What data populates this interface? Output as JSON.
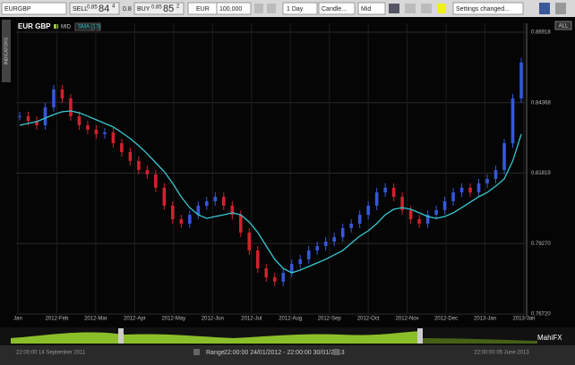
{
  "toolbar": {
    "symbol": "EURGBP",
    "sell_label": "SELL",
    "sell_small": "0.85",
    "sell_big": "84",
    "sell_sup": "4",
    "spread": "0.8",
    "buy_label": "BUY",
    "buy_small": "0.85",
    "buy_big": "85",
    "buy_sup": "2",
    "currency": "EUR",
    "amount": "100,000",
    "period": "1 Day",
    "chart_style": "Candle...",
    "price_type": "Mid",
    "settings": "Settings changed..."
  },
  "side_tab": "INDICATORS",
  "all_button": "ALL",
  "navigator": {
    "start": "22:00:00 14 September 2011",
    "range_label": "Range",
    "range": "22:00:00 24/01/2012 - 22:00:00 30/01/2013",
    "end": "22:00:00 05 June 2013",
    "brand": "MahiFX"
  },
  "chart_data": {
    "type": "candlestick",
    "title": "EUR GBP",
    "price_badge": "MID",
    "indicator": "SMA (10)",
    "x_labels": [
      "Jan",
      "2012-Feb",
      "2012-Mar",
      "2012-Apr",
      "2012-May",
      "2012-Jun",
      "2012-Jul",
      "2012-Aug",
      "2012-Sep",
      "2012-Oct",
      "2012-Nov",
      "2012-Dec",
      "2013-Jan",
      "2013-Jan"
    ],
    "ylim": [
      0.7672,
      0.86918
    ],
    "yticks": [
      {
        "value": 0.7672,
        "label": "0.76720"
      },
      {
        "value": 0.7927,
        "label": "0.79270"
      },
      0.81819,
      0.84368,
      0.86918
    ],
    "up_color": "#3558d8",
    "down_color": "#d3202e",
    "grid": true,
    "series": [
      {
        "name": "MID",
        "values": [
          0.8388,
          0.8371,
          0.8355,
          0.842,
          0.8485,
          0.8452,
          0.8388,
          0.8355,
          0.8339,
          0.8323,
          0.8329,
          0.829,
          0.8258,
          0.8226,
          0.8193,
          0.8177,
          0.8129,
          0.8064,
          0.8015,
          0.7999,
          0.8031,
          0.8064,
          0.808,
          0.8096,
          0.8064,
          0.8031,
          0.7967,
          0.7902,
          0.7837,
          0.7805,
          0.7789,
          0.7821,
          0.7853,
          0.787,
          0.7902,
          0.7918,
          0.7934,
          0.795,
          0.7983,
          0.7999,
          0.8031,
          0.8064,
          0.8112,
          0.8129,
          0.8096,
          0.8048,
          0.8015,
          0.7999,
          0.8031,
          0.8048,
          0.808,
          0.8112,
          0.8129,
          0.8112,
          0.8145,
          0.8161,
          0.8193,
          0.829,
          0.8452,
          0.8582
        ]
      },
      {
        "name": "SMA (10)",
        "color": "#37c8d2",
        "values": [
          0.8355,
          0.8362,
          0.8368,
          0.8381,
          0.8394,
          0.8404,
          0.8407,
          0.84,
          0.8388,
          0.8375,
          0.8362,
          0.8349,
          0.8329,
          0.8307,
          0.8281,
          0.8252,
          0.8219,
          0.8187,
          0.8145,
          0.8096,
          0.8057,
          0.8031,
          0.8018,
          0.8025,
          0.8031,
          0.8038,
          0.8031,
          0.8005,
          0.7967,
          0.7918,
          0.787,
          0.7837,
          0.7821,
          0.7831,
          0.7844,
          0.7857,
          0.787,
          0.7886,
          0.7902,
          0.7928,
          0.7954,
          0.7973,
          0.7999,
          0.8031,
          0.8051,
          0.8057,
          0.8051,
          0.8038,
          0.8025,
          0.8018,
          0.8025,
          0.8038,
          0.8057,
          0.8077,
          0.8096,
          0.8112,
          0.8135,
          0.8161,
          0.8226,
          0.8323
        ]
      }
    ]
  }
}
